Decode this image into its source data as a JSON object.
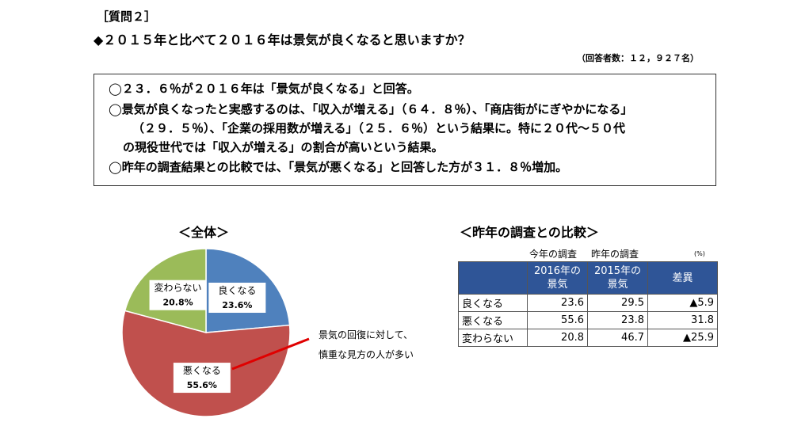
{
  "header": {
    "label": "［質問２］",
    "question": "◆２０１５年と比べて２０１６年は景気が良くなると思いますか？",
    "respondents": "（回答者数：１２，９２７名）"
  },
  "summary": {
    "lines": [
      "◯２３．６％が２０１６年は「景気が良くなる」と回答。",
      "◯景気が良くなったと実感するのは、「収入が増える」（６４．８％）、「商店街がにぎやかになる」",
      "（２９．５％）、「企業の採用数が増える」（２５．６％）という結果に。特に２０代～５０代",
      "の現役世代では「収入が増える」の割合が高いという結果。",
      "◯昨年の調査結果との比較では、「景気が悪くなる」と回答した方が３１．８％増加。"
    ]
  },
  "chart_data": {
    "type": "pie",
    "title": "＜全体＞",
    "categories": [
      "良くなる",
      "悪くなる",
      "変わらない"
    ],
    "values": [
      23.6,
      55.6,
      20.8
    ],
    "value_labels": [
      "23.6%",
      "55.6%",
      "20.8%"
    ],
    "colors": [
      "#4f81bd",
      "#c0504d",
      "#9bbb59"
    ],
    "annotation": [
      "景気の回復に対して、",
      "慎重な見方の人が多い"
    ]
  },
  "comparison": {
    "title": "＜昨年の調査との比較＞",
    "captions": [
      "今年の調査",
      "昨年の調査",
      "(%)"
    ],
    "header": [
      "",
      "2016年の\n景気",
      "2015年の\n景気",
      "差異"
    ],
    "rows": [
      [
        "良くなる",
        23.6,
        29.5,
        "▲5.9"
      ],
      [
        "悪くなる",
        55.6,
        23.8,
        31.8
      ],
      [
        "変わらない",
        20.8,
        46.7,
        "▲25.9"
      ]
    ]
  }
}
